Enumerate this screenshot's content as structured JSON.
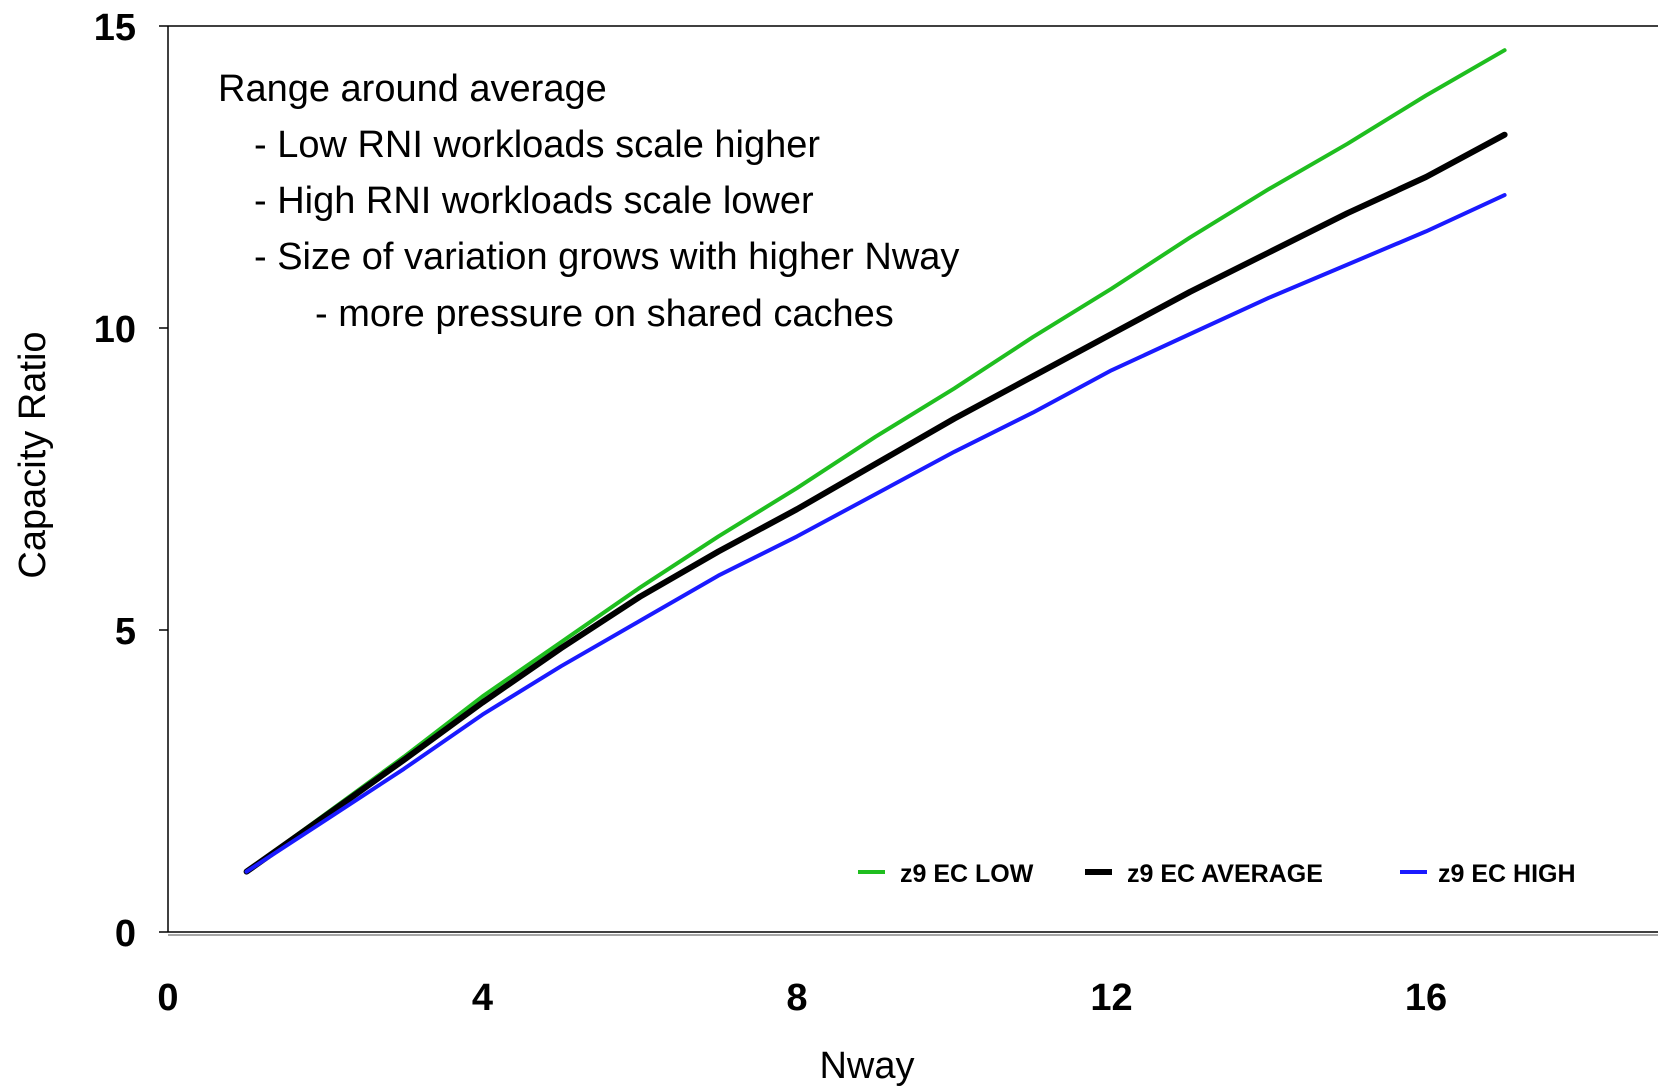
{
  "chart_data": {
    "type": "line",
    "title": "",
    "xlabel": "Nway",
    "ylabel": "Capacity Ratio",
    "xlim": [
      0,
      17
    ],
    "ylim": [
      0,
      15
    ],
    "x_ticks": [
      "0",
      "4",
      "8",
      "12",
      "16"
    ],
    "y_ticks": [
      "0",
      "5",
      "10",
      "15"
    ],
    "grid": false,
    "legend_position": "bottom-right",
    "annotation": {
      "lines": [
        "Range around average",
        "- Low RNI workloads scale higher",
        "- High RNI workloads scale lower",
        "- Size of variation grows with higher Nway",
        "- more pressure on shared caches"
      ]
    },
    "x": [
      1,
      2,
      3,
      4,
      5,
      6,
      7,
      8,
      9,
      10,
      11,
      12,
      13,
      14,
      15,
      16,
      17
    ],
    "series": [
      {
        "name": "z9 EC LOW",
        "color": "#1fbe1f",
        "values": [
          1.0,
          1.95,
          2.9,
          3.9,
          4.8,
          5.7,
          6.55,
          7.35,
          8.2,
          9.0,
          9.85,
          10.65,
          11.5,
          12.3,
          13.05,
          13.85,
          14.6
        ]
      },
      {
        "name": "z9 EC AVERAGE",
        "color": "#000000",
        "values": [
          1.0,
          1.92,
          2.85,
          3.8,
          4.7,
          5.55,
          6.3,
          7.0,
          7.75,
          8.5,
          9.2,
          9.9,
          10.6,
          11.25,
          11.9,
          12.5,
          13.2
        ]
      },
      {
        "name": "z9 EC HIGH",
        "color": "#1a1aff",
        "values": [
          1.0,
          1.85,
          2.7,
          3.6,
          4.4,
          5.15,
          5.9,
          6.55,
          7.25,
          7.95,
          8.6,
          9.3,
          9.9,
          10.5,
          11.05,
          11.6,
          12.2
        ]
      }
    ]
  }
}
